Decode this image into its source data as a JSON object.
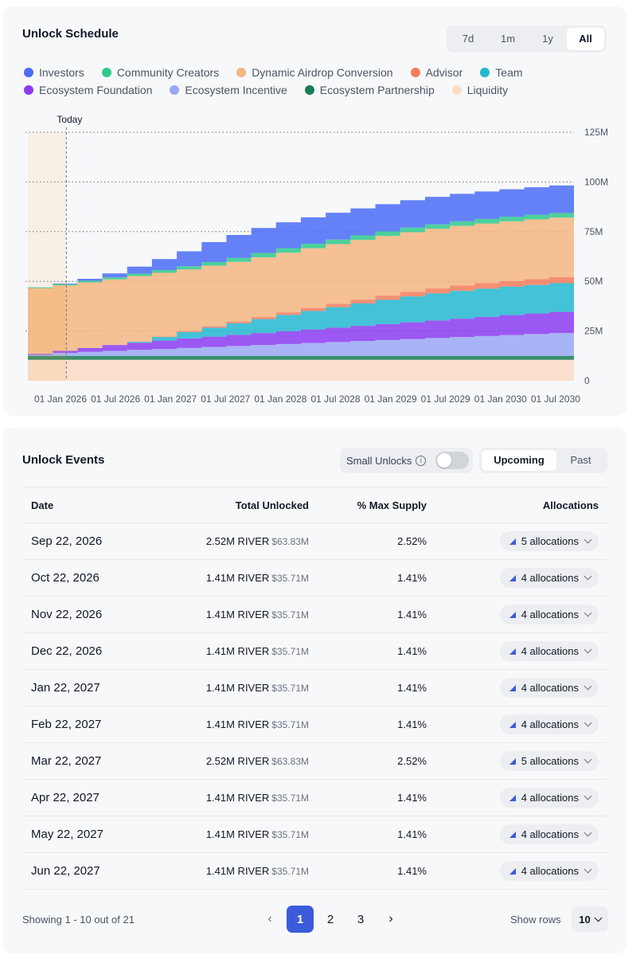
{
  "schedule": {
    "title": "Unlock Schedule",
    "ranges": [
      "7d",
      "1m",
      "1y",
      "All"
    ],
    "active_range": "All",
    "legend": [
      {
        "label": "Investors",
        "color": "#4a6cf7"
      },
      {
        "label": "Community Creators",
        "color": "#2fc98c"
      },
      {
        "label": "Dynamic Airdrop Conversion",
        "color": "#f5b680"
      },
      {
        "label": "Advisor",
        "color": "#f57c5b"
      },
      {
        "label": "Team",
        "color": "#25b8d0"
      },
      {
        "label": "Ecosystem Foundation",
        "color": "#8b3cf0"
      },
      {
        "label": "Ecosystem Incentive",
        "color": "#9aa8f3"
      },
      {
        "label": "Ecosystem Partnership",
        "color": "#1a7d52"
      },
      {
        "label": "Liquidity",
        "color": "#fbdcc4"
      }
    ]
  },
  "chart_data": {
    "type": "area",
    "stacked": true,
    "title": "Unlock Schedule",
    "today_label": "Today",
    "x_tick_labels": [
      "01 Jan 2026",
      "01 Jul 2026",
      "01 Jan 2027",
      "01 Jul 2027",
      "01 Jan 2028",
      "01 Jul 2028",
      "01 Jan 2029",
      "01 Jul 2029",
      "01 Jan 2030",
      "01 Jul 2030"
    ],
    "y_tick_labels": [
      "0",
      "25M",
      "50M",
      "75M",
      "100M",
      "125M"
    ],
    "ylim": [
      0,
      125
    ],
    "y_unit": "M tokens",
    "x": [
      0,
      3,
      6,
      9,
      12,
      15,
      18,
      21,
      24,
      27,
      30,
      33,
      36,
      39,
      42,
      45,
      48,
      51,
      54,
      57,
      60,
      63
    ],
    "series": [
      {
        "name": "Liquidity",
        "color": "#fbdcc4",
        "values": [
          10.5,
          10.5,
          10.5,
          10.5,
          10.5,
          10.5,
          10.5,
          10.5,
          10.5,
          10.5,
          10.5,
          10.5,
          10.5,
          10.5,
          10.5,
          10.5,
          10.5,
          10.5,
          10.5,
          10.5,
          10.5,
          10.5
        ]
      },
      {
        "name": "Ecosystem Partnership",
        "color": "#1a7d52",
        "values": [
          2,
          2,
          2,
          2,
          2,
          2,
          2,
          2,
          2,
          2,
          2,
          2,
          2,
          2,
          2,
          2,
          2,
          2,
          2,
          2,
          2,
          2
        ]
      },
      {
        "name": "Ecosystem Incentive",
        "color": "#9aa8f3",
        "values": [
          0.5,
          1.5,
          2,
          2.5,
          3,
          3.5,
          4,
          4.5,
          5,
          5.5,
          6,
          6.5,
          7,
          7.5,
          8,
          8.5,
          9,
          9.5,
          10,
          10.5,
          11,
          11.5
        ]
      },
      {
        "name": "Ecosystem Foundation",
        "color": "#8b3cf0",
        "values": [
          0.5,
          1,
          2,
          3,
          3.6,
          4.2,
          4.8,
          5.2,
          5.6,
          6,
          6.4,
          6.8,
          7.2,
          7.6,
          8,
          8.4,
          8.8,
          9.2,
          9.6,
          10,
          10.3,
          10.6
        ]
      },
      {
        "name": "Team",
        "color": "#25b8d0",
        "values": [
          0,
          0,
          0,
          0,
          0.5,
          1.8,
          3.2,
          4.5,
          5.8,
          7,
          8.2,
          9.3,
          10.3,
          11.3,
          12.2,
          13,
          13.6,
          14,
          14.2,
          14.3,
          14.4,
          14.5
        ]
      },
      {
        "name": "Advisor",
        "color": "#f57c5b",
        "values": [
          0,
          0,
          0,
          0,
          0.1,
          0.3,
          0.5,
          0.7,
          0.9,
          1.1,
          1.3,
          1.5,
          1.7,
          1.9,
          2.1,
          2.3,
          2.5,
          2.7,
          2.8,
          2.9,
          3,
          3
        ]
      },
      {
        "name": "Dynamic Airdrop Conversion",
        "color": "#f5b680",
        "values": [
          33,
          33,
          33,
          33,
          33,
          32,
          31,
          30.5,
          30,
          30,
          30,
          30,
          30,
          30,
          30,
          30,
          30,
          30,
          30,
          30,
          30,
          30
        ]
      },
      {
        "name": "Community Creators",
        "color": "#2fc98c",
        "values": [
          0.5,
          0.6,
          0.8,
          1,
          1.2,
          1.4,
          1.6,
          1.8,
          2,
          2.2,
          2.3,
          2.3,
          2.3,
          2.3,
          2.3,
          2.3,
          2.3,
          2.3,
          2.3,
          2.3,
          2.3,
          2.3
        ]
      },
      {
        "name": "Investors",
        "color": "#4a6cf7",
        "values": [
          0,
          0.3,
          1,
          2,
          3.5,
          5.5,
          7.5,
          10,
          11.5,
          12.5,
          13,
          13.3,
          13.5,
          13.6,
          13.7,
          13.8,
          13.8,
          13.8,
          13.8,
          13.8,
          13.8,
          13.8
        ]
      }
    ]
  },
  "events": {
    "title": "Unlock Events",
    "small_unlocks_label": "Small Unlocks",
    "info_glyph": "i",
    "tabs": [
      "Upcoming",
      "Past"
    ],
    "active_tab": "Upcoming",
    "columns": [
      "Date",
      "Total Unlocked",
      "% Max Supply",
      "Allocations"
    ],
    "rows": [
      {
        "date": "Sep 22, 2026",
        "tokens": "2.52M RIVER",
        "usd": "$63.83M",
        "pct": "2.52%",
        "alloc": "5 allocations"
      },
      {
        "date": "Oct 22, 2026",
        "tokens": "1.41M RIVER",
        "usd": "$35.71M",
        "pct": "1.41%",
        "alloc": "4 allocations"
      },
      {
        "date": "Nov 22, 2026",
        "tokens": "1.41M RIVER",
        "usd": "$35.71M",
        "pct": "1.41%",
        "alloc": "4 allocations"
      },
      {
        "date": "Dec 22, 2026",
        "tokens": "1.41M RIVER",
        "usd": "$35.71M",
        "pct": "1.41%",
        "alloc": "4 allocations"
      },
      {
        "date": "Jan 22, 2027",
        "tokens": "1.41M RIVER",
        "usd": "$35.71M",
        "pct": "1.41%",
        "alloc": "4 allocations"
      },
      {
        "date": "Feb 22, 2027",
        "tokens": "1.41M RIVER",
        "usd": "$35.71M",
        "pct": "1.41%",
        "alloc": "4 allocations"
      },
      {
        "date": "Mar 22, 2027",
        "tokens": "2.52M RIVER",
        "usd": "$63.83M",
        "pct": "2.52%",
        "alloc": "5 allocations"
      },
      {
        "date": "Apr 22, 2027",
        "tokens": "1.41M RIVER",
        "usd": "$35.71M",
        "pct": "1.41%",
        "alloc": "4 allocations"
      },
      {
        "date": "May 22, 2027",
        "tokens": "1.41M RIVER",
        "usd": "$35.71M",
        "pct": "1.41%",
        "alloc": "4 allocations"
      },
      {
        "date": "Jun 22, 2027",
        "tokens": "1.41M RIVER",
        "usd": "$35.71M",
        "pct": "1.41%",
        "alloc": "4 allocations"
      }
    ],
    "pagination": {
      "showing": "Showing 1 - 10 out of 21",
      "prev_glyph": "‹",
      "next_glyph": "›",
      "pages": [
        "1",
        "2",
        "3"
      ],
      "active_page": "1",
      "show_rows_label": "Show rows",
      "rows_value": "10"
    }
  }
}
